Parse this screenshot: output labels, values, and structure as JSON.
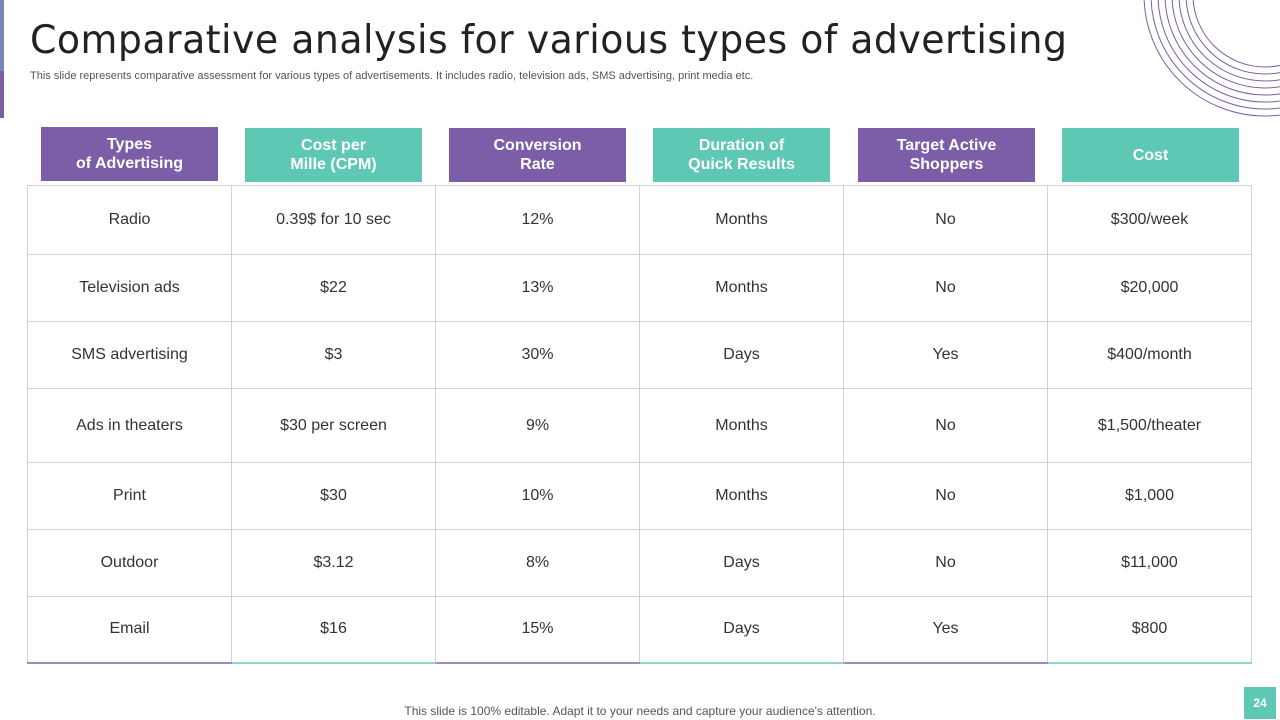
{
  "title": "Comparative analysis for various types of advertising",
  "subtitle": "This slide represents comparative assessment for various types of advertisements. It includes radio, television ads, SMS advertising, print media etc.",
  "headers": [
    "Types\nof Advertising",
    "Cost per\nMille (CPM)",
    "Conversion\nRate",
    "Duration of\nQuick Results",
    "Target Active\nShoppers",
    "Cost"
  ],
  "rows": [
    [
      "Radio",
      "0.39$ for 10 sec",
      "12%",
      "Months",
      "No",
      "$300/week"
    ],
    [
      "Television ads",
      "$22",
      "13%",
      "Months",
      "No",
      "$20,000"
    ],
    [
      "SMS advertising",
      "$3",
      "30%",
      "Days",
      "Yes",
      "$400/month"
    ],
    [
      "Ads in theaters",
      "$30 per screen",
      "9%",
      "Months",
      "No",
      "$1,500/theater"
    ],
    [
      "Print",
      "$30",
      "10%",
      "Months",
      "No",
      "$1,000"
    ],
    [
      "Outdoor",
      "$3.12",
      "8%",
      "Days",
      "No",
      "$11,000"
    ],
    [
      "Email",
      "$16",
      "15%",
      "Days",
      "Yes",
      "$800"
    ]
  ],
  "footer": "This slide is 100% editable. Adapt it to your needs and capture your audience's attention.",
  "page_number": "24",
  "colors": {
    "purple": "#7b5ea7",
    "teal": "#5ec8b4"
  }
}
